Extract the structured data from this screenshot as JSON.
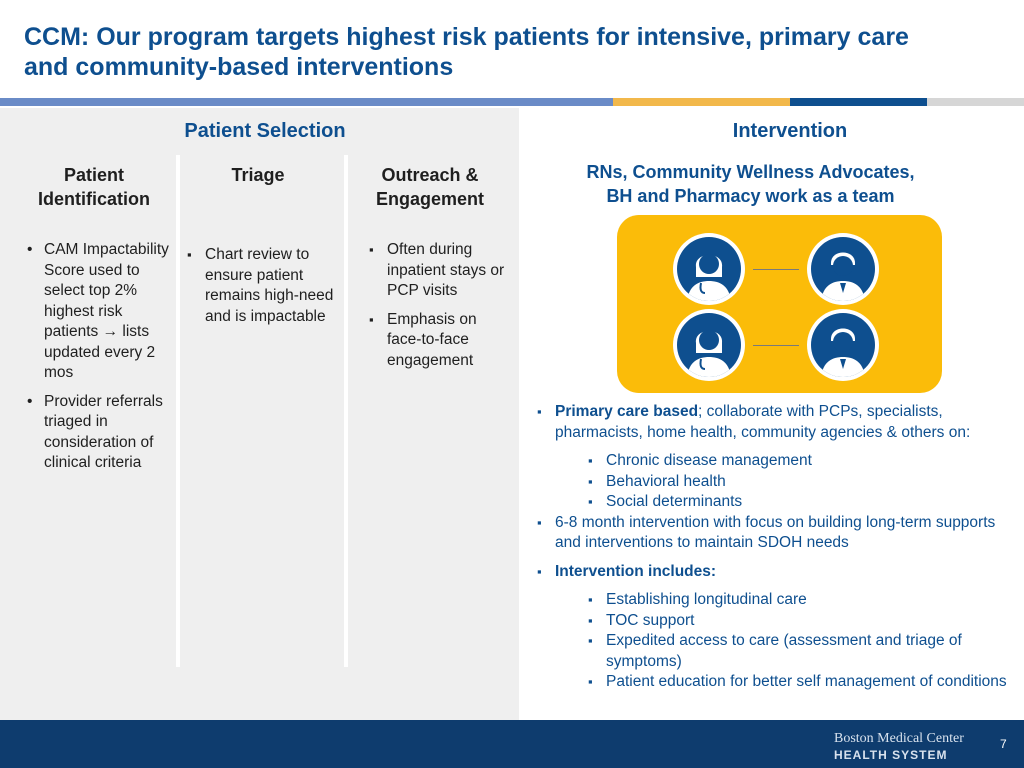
{
  "slide": {
    "title_line1": "CCM: Our program targets highest risk patients for intensive, primary care",
    "title_line2": "and community-based interventions",
    "page_number": "7"
  },
  "colors": {
    "brand_blue": "#0e4f8f",
    "accent_gold": "#fbbc09",
    "footer_navy": "#0e3c6e"
  },
  "patient_selection": {
    "heading": "Patient Selection",
    "columns": [
      {
        "title_line1": "Patient",
        "title_line2": "Identification",
        "bullets": [
          {
            "before_arrow": "CAM Impactability Score used to select top 2% highest risk patients",
            "arrow": "→",
            "after_arrow": "lists updated every 2 mos"
          },
          {
            "text": "Provider referrals triaged in consideration of clinical criteria"
          }
        ]
      },
      {
        "title_line1": "Triage",
        "bullets": [
          "Chart review to ensure patient remains high-need and is impactable"
        ]
      },
      {
        "title_line1": "Outreach &",
        "title_line2": "Engagement",
        "bullets": [
          "Often during inpatient stays or PCP visits",
          "Emphasis on face-to-face engagement"
        ]
      }
    ]
  },
  "intervention": {
    "heading": "Intervention",
    "team_line1": "RNs, Community Wellness Advocates,",
    "team_line2": "BH and Pharmacy work as a team",
    "team_icons": [
      "female-nurse-icon",
      "male-staff-icon",
      "female-nurse-icon",
      "male-staff-icon"
    ],
    "bullets": [
      {
        "bold": "Primary care based",
        "text": "; collaborate with PCPs, specialists, pharmacists, home health, community agencies & others on:",
        "sub": [
          "Chronic disease management",
          "Behavioral health",
          "Social determinants"
        ]
      },
      {
        "text": "6-8 month intervention with focus on building long-term supports and interventions to maintain SDOH needs"
      },
      {
        "bold": "Intervention includes:",
        "sub": [
          "Establishing longitudinal care",
          "TOC support",
          "Expedited access to care (assessment and triage of symptoms)",
          "Patient education for better self management of conditions"
        ]
      }
    ]
  },
  "footer": {
    "logo_line1": "Boston Medical Center",
    "logo_line2": "HEALTH SYSTEM"
  }
}
